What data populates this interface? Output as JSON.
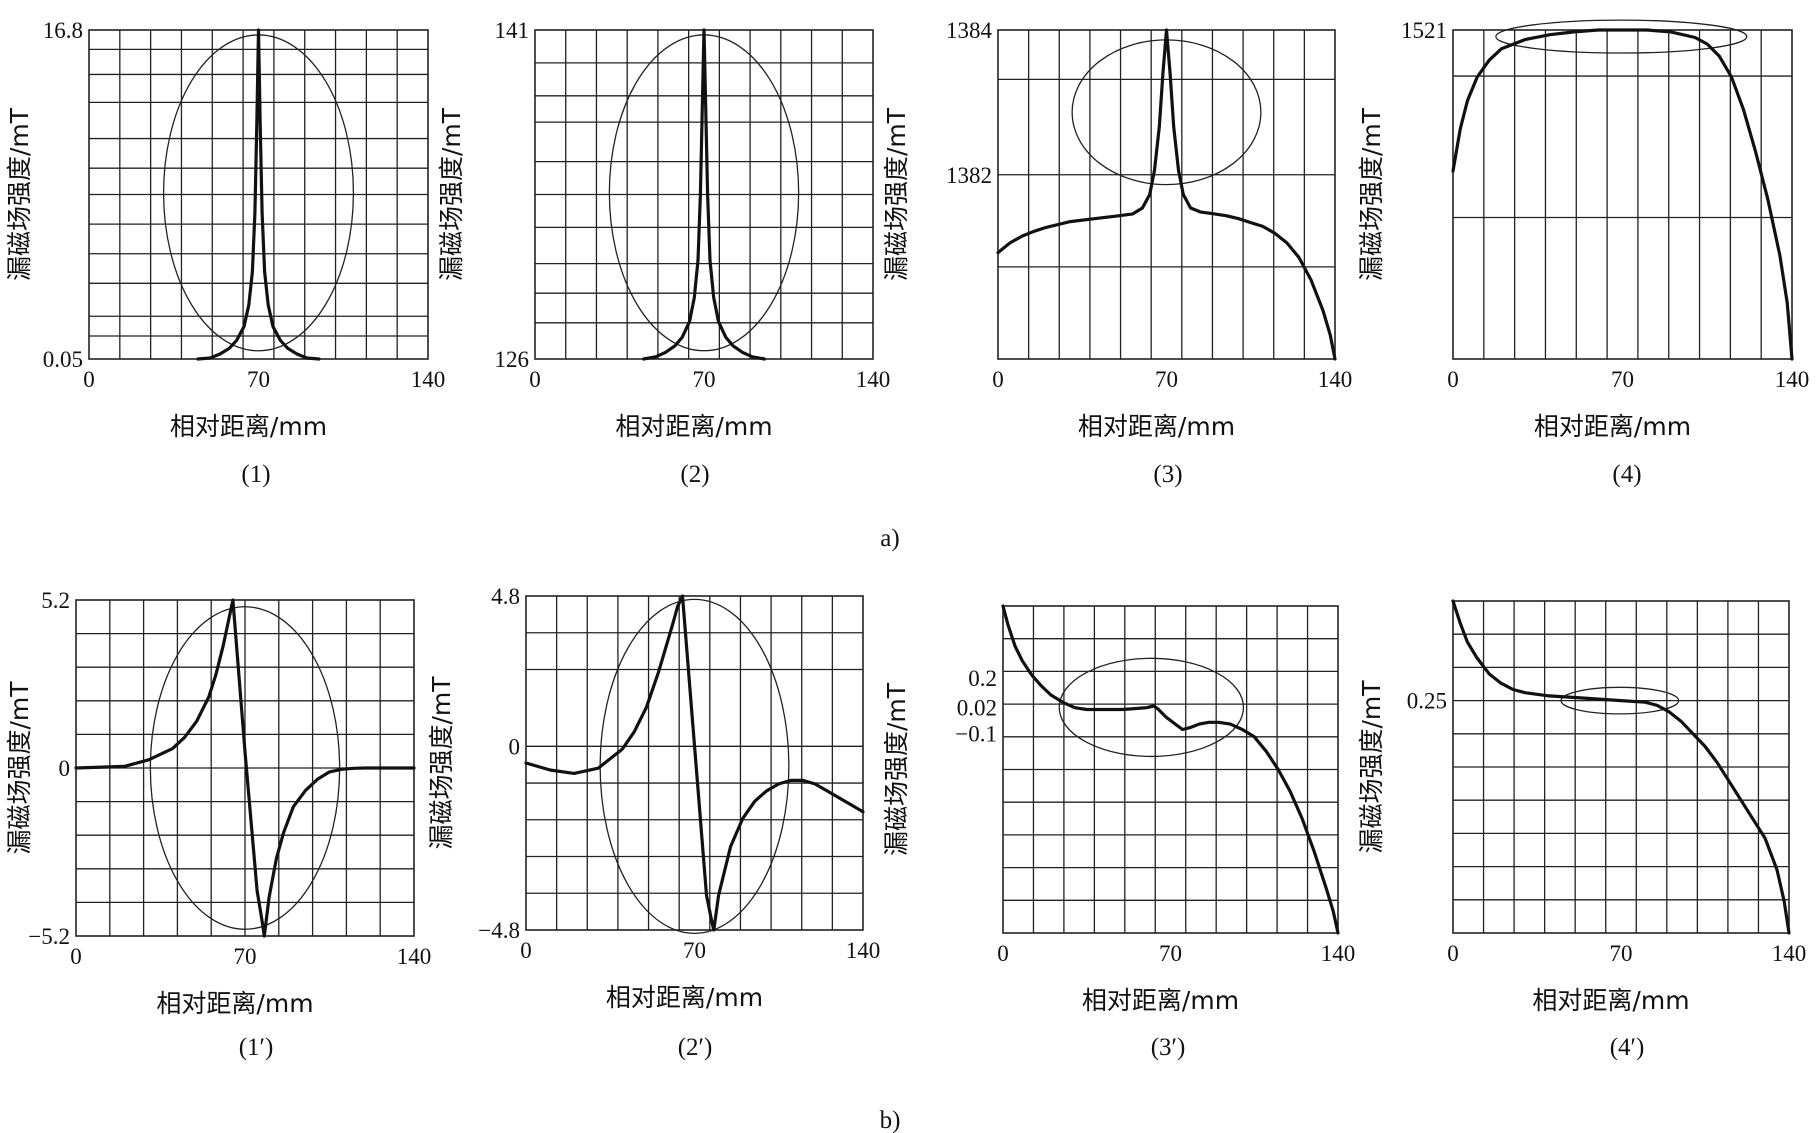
{
  "captions": {
    "a": "a)",
    "b": "b)"
  },
  "chart_data": [
    {
      "id": "1",
      "caption": "(1)",
      "type": "line",
      "xlabel": "相对距离/mm",
      "ylabel": "漏磁场强度/mT",
      "xlim": [
        0,
        140
      ],
      "ylim": [
        0.05,
        16.8
      ],
      "xticks": [
        "0",
        "70",
        "140"
      ],
      "yticks": [
        "16.8",
        "0.05"
      ],
      "grid": true,
      "highlight_ellipse": true,
      "x": [
        45,
        50,
        54,
        58,
        61,
        64,
        66,
        67.5,
        68.5,
        69.3,
        70,
        70.7,
        71.5,
        72.5,
        74,
        76,
        79,
        82,
        86,
        90,
        95
      ],
      "y": [
        0.05,
        0.1,
        0.3,
        0.6,
        1.0,
        1.7,
        2.8,
        4.5,
        7.5,
        12.0,
        16.8,
        12.0,
        7.5,
        4.5,
        2.8,
        1.7,
        1.0,
        0.6,
        0.3,
        0.1,
        0.05
      ]
    },
    {
      "id": "2",
      "caption": "(2)",
      "type": "line",
      "xlabel": "相对距离/mm",
      "ylabel": "漏磁场强度/mT",
      "xlim": [
        0,
        140
      ],
      "ylim": [
        126,
        141
      ],
      "xticks": [
        "0",
        "70",
        "140"
      ],
      "yticks": [
        "141",
        "126"
      ],
      "grid": true,
      "highlight_ellipse": true,
      "x": [
        45,
        50,
        54,
        58,
        61,
        64,
        66,
        67.5,
        68.5,
        69.3,
        70,
        70.7,
        71.5,
        72.5,
        74,
        76,
        79,
        82,
        86,
        90,
        95
      ],
      "y": [
        126,
        126.1,
        126.3,
        126.6,
        127,
        127.7,
        128.8,
        130.5,
        133.5,
        137.5,
        141,
        137.5,
        133.5,
        130.5,
        128.8,
        127.7,
        127,
        126.6,
        126.3,
        126.1,
        126
      ]
    },
    {
      "id": "3",
      "caption": "(3)",
      "type": "line",
      "xlabel": "相对距离/mm",
      "ylabel": "漏磁场强度/mT",
      "xlim": [
        0,
        140
      ],
      "ylim": [
        1380.6,
        1384
      ],
      "xticks": [
        "0",
        "70",
        "140"
      ],
      "yticks": [
        "1384",
        "1382"
      ],
      "grid": true,
      "highlight_ellipse": true,
      "x": [
        0,
        5,
        10,
        15,
        20,
        25,
        30,
        40,
        50,
        56,
        60,
        63,
        65,
        67,
        68.5,
        70,
        71.5,
        73,
        75,
        77,
        80,
        84,
        90,
        95,
        100,
        105,
        110,
        115,
        120,
        125,
        130,
        135,
        138,
        140
      ],
      "y": [
        1381.7,
        1381.8,
        1381.87,
        1381.92,
        1381.96,
        1381.99,
        1382.02,
        1382.05,
        1382.08,
        1382.1,
        1382.16,
        1382.3,
        1382.55,
        1383.0,
        1383.55,
        1384.0,
        1383.55,
        1383.0,
        1382.55,
        1382.3,
        1382.16,
        1382.12,
        1382.1,
        1382.08,
        1382.05,
        1382.01,
        1381.97,
        1381.9,
        1381.8,
        1381.65,
        1381.42,
        1381.1,
        1380.85,
        1380.6
      ]
    },
    {
      "id": "4",
      "caption": "(4)",
      "type": "line",
      "xlabel": "相对距离/mm",
      "ylabel": "漏磁场强度/mT",
      "xlim": [
        0,
        140
      ],
      "ylim": [
        1517.5,
        1521
      ],
      "xticks": [
        "0",
        "70",
        "140"
      ],
      "yticks": [
        "1521"
      ],
      "grid": true,
      "highlight_ellipse": true,
      "x": [
        0,
        3,
        6,
        10,
        15,
        20,
        30,
        40,
        50,
        60,
        70,
        80,
        90,
        100,
        105,
        110,
        115,
        120,
        125,
        130,
        135,
        138,
        140
      ],
      "y": [
        1519.5,
        1519.95,
        1520.25,
        1520.5,
        1520.68,
        1520.8,
        1520.9,
        1520.95,
        1520.98,
        1521,
        1521,
        1521,
        1520.98,
        1520.92,
        1520.85,
        1520.72,
        1520.5,
        1520.15,
        1519.7,
        1519.2,
        1518.6,
        1518.1,
        1517.5
      ]
    },
    {
      "id": "1p",
      "caption": "(1′)",
      "type": "line",
      "xlabel": "相对距离/mm",
      "ylabel": "漏磁场强度/mT",
      "xlim": [
        0,
        140
      ],
      "ylim": [
        -5.2,
        5.2
      ],
      "xticks": [
        "0",
        "70",
        "140"
      ],
      "yticks": [
        "5.2",
        "0",
        "−5.2"
      ],
      "grid": true,
      "highlight_ellipse": true,
      "x": [
        0,
        20,
        30,
        40,
        45,
        50,
        55,
        58,
        61,
        63,
        65,
        70,
        75,
        77,
        78,
        80,
        83,
        86,
        90,
        95,
        100,
        105,
        110,
        115,
        120,
        140
      ],
      "y": [
        0,
        0.05,
        0.25,
        0.6,
        0.95,
        1.45,
        2.2,
        2.9,
        3.8,
        4.5,
        5.2,
        0.5,
        -3.8,
        -4.7,
        -5.2,
        -4.0,
        -2.8,
        -2.0,
        -1.2,
        -0.7,
        -0.35,
        -0.12,
        -0.04,
        -0.01,
        0,
        0
      ]
    },
    {
      "id": "2p",
      "caption": "(2′)",
      "type": "line",
      "xlabel": "相对距离/mm",
      "ylabel": "漏磁场强度/mT",
      "xlim": [
        0,
        140
      ],
      "ylim": [
        -4.8,
        4.8
      ],
      "xticks": [
        "0",
        "70",
        "140"
      ],
      "yticks": [
        "4.8",
        "0",
        "−4.8"
      ],
      "grid": true,
      "highlight_ellipse": true,
      "x": [
        0,
        10,
        20,
        30,
        40,
        45,
        50,
        55,
        58,
        61,
        63,
        65,
        70,
        75,
        77,
        78,
        80,
        85,
        90,
        95,
        100,
        105,
        110,
        115,
        120,
        125,
        130,
        135,
        140
      ],
      "y": [
        0,
        -0.2,
        -0.3,
        -0.15,
        0.4,
        0.9,
        1.6,
        2.6,
        3.3,
        4.0,
        4.5,
        4.8,
        0.5,
        -3.8,
        -4.5,
        -4.8,
        -3.8,
        -2.4,
        -1.6,
        -1.1,
        -0.8,
        -0.6,
        -0.5,
        -0.5,
        -0.6,
        -0.8,
        -1.0,
        -1.2,
        -1.4
      ]
    },
    {
      "id": "3p",
      "caption": "(3′)",
      "type": "line",
      "xlabel": "相对距离/mm",
      "ylabel": "漏磁场强度/mT",
      "xlim": [
        0,
        140
      ],
      "ylim": [
        -1.2,
        0.6
      ],
      "xticks": [
        "0",
        "70",
        "140"
      ],
      "yticks": [
        "0.2",
        "0.02",
        "−0.1"
      ],
      "grid": true,
      "highlight_ellipse": true,
      "x": [
        0,
        2,
        5,
        8,
        12,
        16,
        20,
        25,
        30,
        35,
        40,
        45,
        50,
        55,
        60,
        63,
        65,
        68,
        72,
        75,
        78,
        82,
        86,
        90,
        95,
        100,
        105,
        110,
        115,
        120,
        125,
        130,
        135,
        138,
        140
      ],
      "y": [
        0.6,
        0.5,
        0.38,
        0.3,
        0.22,
        0.16,
        0.11,
        0.07,
        0.04,
        0.03,
        0.03,
        0.03,
        0.03,
        0.035,
        0.04,
        0.05,
        0.03,
        -0.01,
        -0.05,
        -0.08,
        -0.07,
        -0.05,
        -0.04,
        -0.04,
        -0.05,
        -0.08,
        -0.12,
        -0.2,
        -0.3,
        -0.42,
        -0.57,
        -0.75,
        -0.95,
        -1.08,
        -1.2
      ]
    },
    {
      "id": "4p",
      "caption": "(4′)",
      "type": "line",
      "xlabel": "相对距离/mm",
      "ylabel": "漏磁场强度/mT",
      "xlim": [
        0,
        140
      ],
      "ylim": [
        -0.5,
        0.55
      ],
      "xticks": [
        "0",
        "70",
        "140"
      ],
      "yticks": [
        "0.25"
      ],
      "grid": true,
      "highlight_ellipse": true,
      "x": [
        0,
        3,
        6,
        10,
        15,
        20,
        25,
        30,
        40,
        50,
        60,
        70,
        80,
        85,
        90,
        95,
        100,
        105,
        110,
        115,
        120,
        125,
        130,
        135,
        138,
        140
      ],
      "y": [
        0.55,
        0.48,
        0.42,
        0.37,
        0.32,
        0.29,
        0.27,
        0.26,
        0.25,
        0.245,
        0.24,
        0.235,
        0.23,
        0.22,
        0.2,
        0.17,
        0.13,
        0.09,
        0.04,
        -0.02,
        -0.08,
        -0.14,
        -0.2,
        -0.3,
        -0.4,
        -0.5
      ]
    }
  ]
}
